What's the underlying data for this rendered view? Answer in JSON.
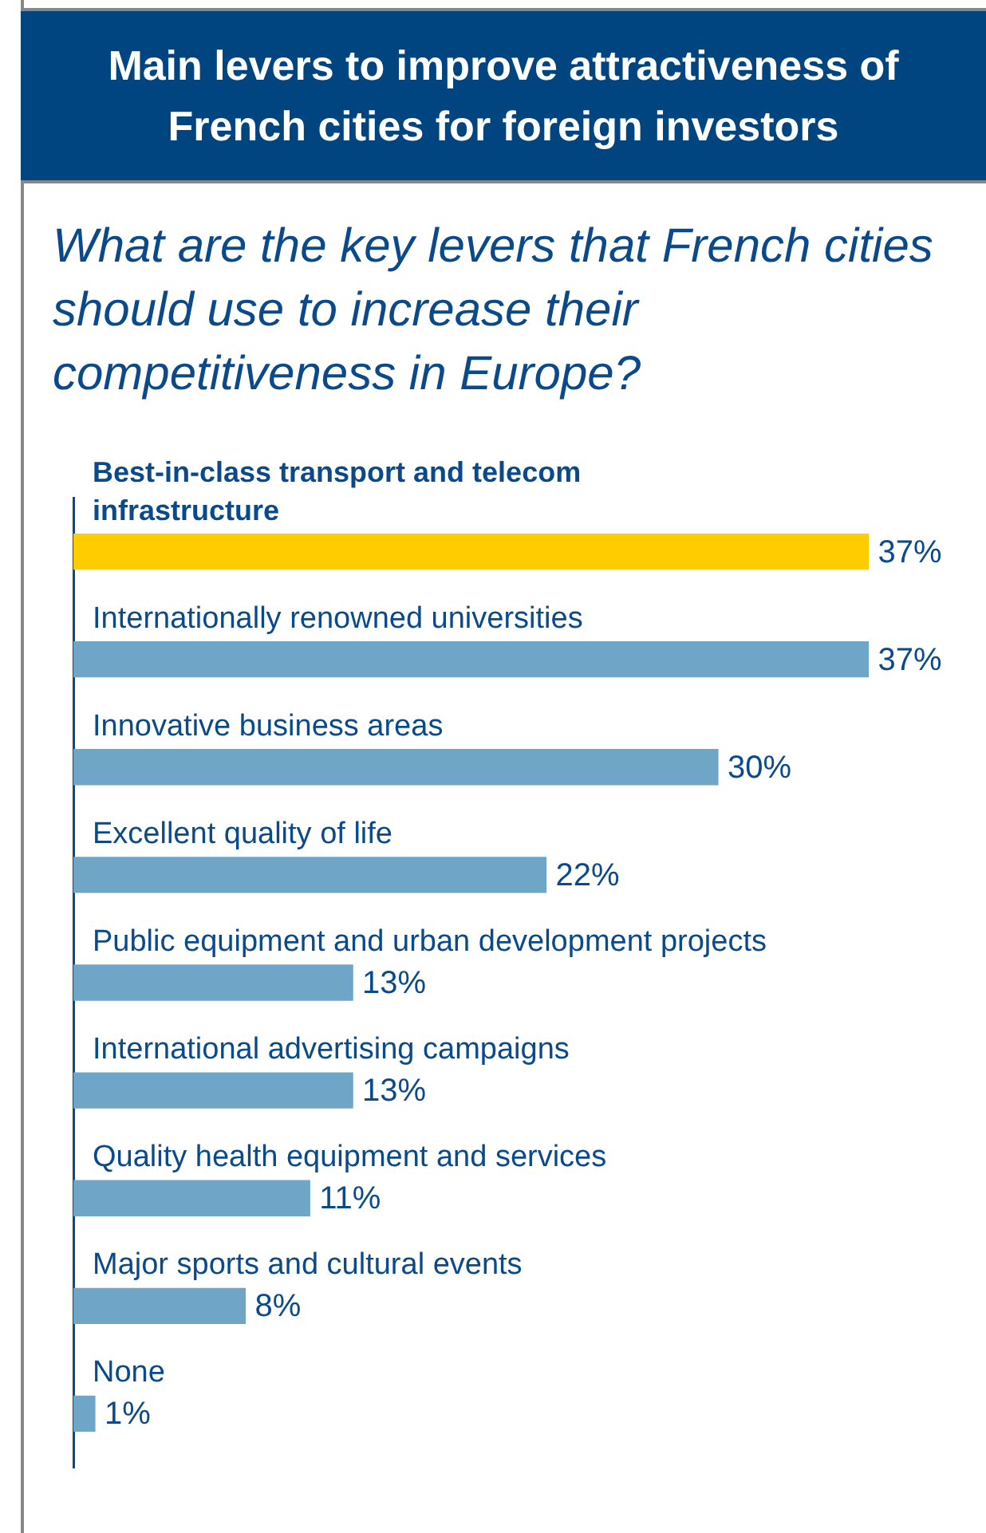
{
  "chart_data": {
    "type": "bar",
    "orientation": "horizontal",
    "title": "Main levers to improve attractiveness of French cities for foreign investors",
    "subtitle": "What are the key levers that French cities should use to increase their competitiveness in Europe?",
    "categories": [
      "Best-in-class transport and telecom infrastructure",
      "Internationally renowned universities",
      "Innovative business areas",
      "Excellent quality of life",
      "Public equipment and urban development projects",
      "International advertising campaigns",
      "Quality health equipment and services",
      "Major sports and cultural events",
      "None"
    ],
    "values": [
      37,
      37,
      30,
      22,
      13,
      13,
      11,
      8,
      1
    ],
    "colors": [
      "#ffcc00",
      "#6fa6c8",
      "#6fa6c8",
      "#6fa6c8",
      "#6fa6c8",
      "#6fa6c8",
      "#6fa6c8",
      "#6fa6c8",
      "#6fa6c8"
    ],
    "value_labels": [
      "37%",
      "37%",
      "30%",
      "22%",
      "13%",
      "13%",
      "11%",
      "8%",
      "1%"
    ]
  }
}
